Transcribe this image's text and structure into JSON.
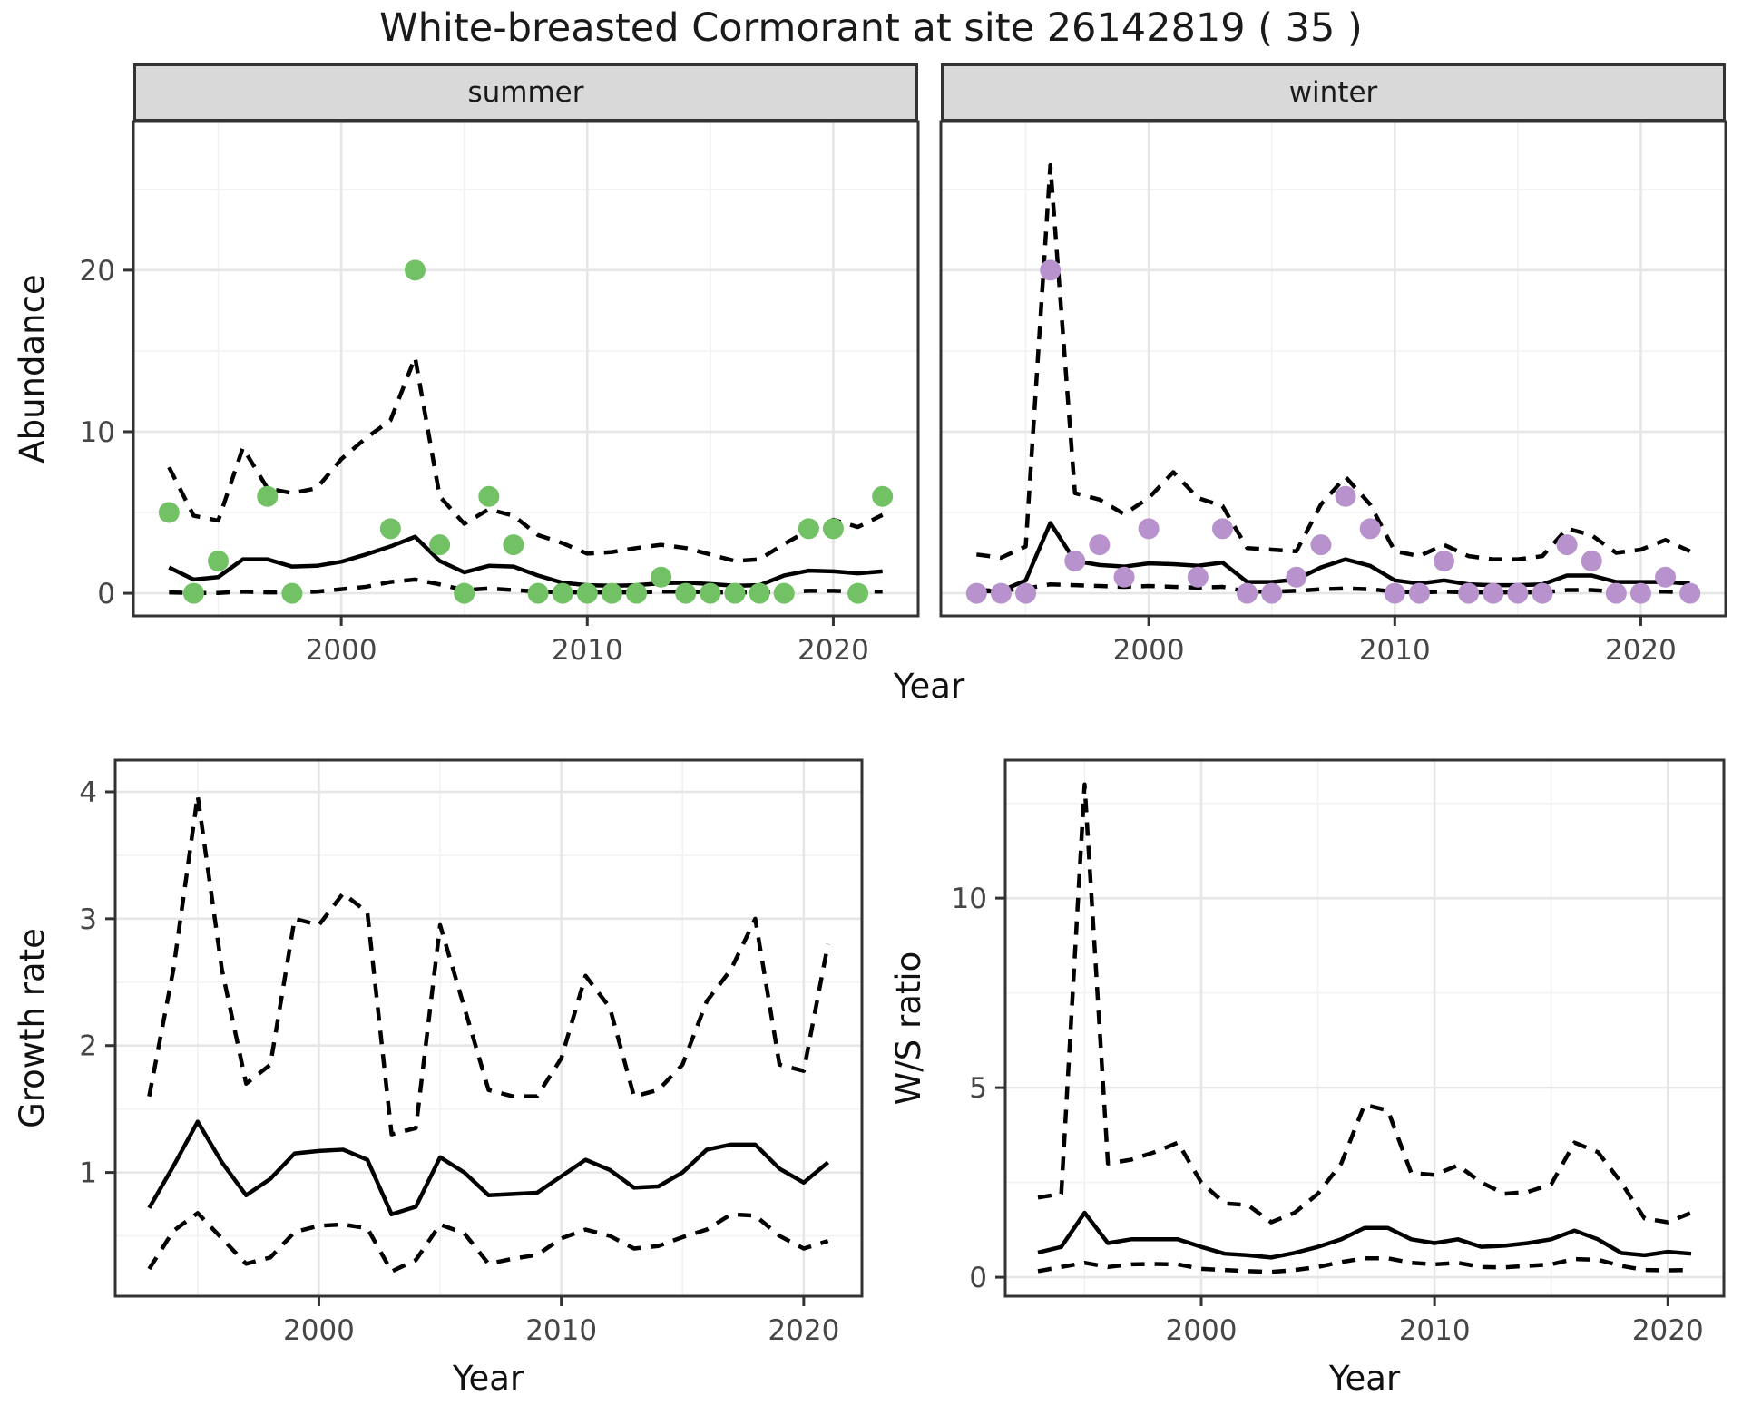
{
  "title": "White-breasted Cormorant at site 26142819 ( 35 )",
  "colors": {
    "summer_points": "#72c165",
    "winter_points": "#b792cc",
    "line": "#000000",
    "panel_border": "#333333",
    "strip_background": "#d9d9d9",
    "grid_major": "#e6e6e6",
    "grid_minor": "#f2f2f2",
    "tick_text": "#464646"
  },
  "chart_data": [
    {
      "id": "abundance-summer",
      "type": "line",
      "facet_label": "summer",
      "xlabel": "Year",
      "ylabel": "Abundance",
      "xlim": [
        1991.55,
        2023.45
      ],
      "ylim": [
        -1.4,
        29.2
      ],
      "x_major": [
        2000,
        2010,
        2020
      ],
      "x_minor": [
        1995,
        2005,
        2015
      ],
      "y_major": [
        0,
        10,
        20
      ],
      "y_minor": [
        5,
        15,
        25
      ],
      "x_tick_labels": [
        "2000",
        "2010",
        "2020"
      ],
      "y_tick_labels": [
        "0",
        "10",
        "20"
      ],
      "grid": true,
      "legend": "none",
      "series": [
        {
          "name": "upper-ci",
          "style": "dashed",
          "x": [
            1993,
            1994,
            1995,
            1996,
            1997,
            1998,
            1999,
            2000,
            2001,
            2002,
            2003,
            2004,
            2005,
            2006,
            2007,
            2008,
            2009,
            2010,
            2011,
            2012,
            2013,
            2014,
            2015,
            2016,
            2017,
            2018,
            2019,
            2020,
            2021,
            2022
          ],
          "y": [
            7.8,
            4.8,
            4.5,
            9.0,
            6.5,
            6.2,
            6.5,
            8.3,
            9.6,
            10.7,
            14.6,
            6.0,
            4.3,
            5.2,
            4.8,
            3.6,
            3.1,
            2.45,
            2.55,
            2.8,
            3.0,
            2.8,
            2.4,
            2.0,
            2.1,
            3.05,
            3.9,
            4.55,
            4.1,
            4.85
          ]
        },
        {
          "name": "lower-ci",
          "style": "dashed",
          "x": [
            1993,
            1994,
            1995,
            1996,
            1997,
            1998,
            1999,
            2000,
            2001,
            2002,
            2003,
            2004,
            2005,
            2006,
            2007,
            2008,
            2009,
            2010,
            2011,
            2012,
            2013,
            2014,
            2015,
            2016,
            2017,
            2018,
            2019,
            2020,
            2021,
            2022
          ],
          "y": [
            0.05,
            0.02,
            0.02,
            0.1,
            0.05,
            0.05,
            0.1,
            0.25,
            0.4,
            0.7,
            0.85,
            0.55,
            0.2,
            0.3,
            0.2,
            0.1,
            0.05,
            0.05,
            0.05,
            0.05,
            0.1,
            0.1,
            0.05,
            0.05,
            0.05,
            0.1,
            0.15,
            0.15,
            0.1,
            0.1
          ]
        },
        {
          "name": "fit",
          "style": "solid",
          "x": [
            1993,
            1994,
            1995,
            1996,
            1997,
            1998,
            1999,
            2000,
            2001,
            2002,
            2003,
            2004,
            2005,
            2006,
            2007,
            2008,
            2009,
            2010,
            2011,
            2012,
            2013,
            2014,
            2015,
            2016,
            2017,
            2018,
            2019,
            2020,
            2021,
            2022
          ],
          "y": [
            1.6,
            0.85,
            1.0,
            2.1,
            2.1,
            1.65,
            1.7,
            1.95,
            2.4,
            2.9,
            3.5,
            2.0,
            1.3,
            1.7,
            1.65,
            1.1,
            0.65,
            0.5,
            0.47,
            0.5,
            0.62,
            0.66,
            0.57,
            0.47,
            0.5,
            1.1,
            1.4,
            1.36,
            1.23,
            1.36
          ]
        },
        {
          "name": "observations",
          "style": "points",
          "color": "#72c165",
          "x": [
            1993,
            1994,
            1995,
            1997,
            1998,
            2002,
            2003,
            2004,
            2005,
            2006,
            2007,
            2008,
            2009,
            2010,
            2011,
            2012,
            2013,
            2014,
            2015,
            2016,
            2017,
            2018,
            2019,
            2020,
            2021,
            2022
          ],
          "y": [
            5,
            0,
            2,
            6,
            0,
            4,
            20,
            3,
            0,
            6,
            3,
            0,
            0,
            0,
            0,
            0,
            1,
            0,
            0,
            0,
            0,
            0,
            4,
            4,
            0,
            6
          ]
        }
      ]
    },
    {
      "id": "abundance-winter",
      "type": "line",
      "facet_label": "winter",
      "xlabel": "Year",
      "ylabel": "Abundance",
      "xlim": [
        1991.55,
        2023.45
      ],
      "ylim": [
        -1.4,
        29.2
      ],
      "x_major": [
        2000,
        2010,
        2020
      ],
      "x_minor": [
        1995,
        2005,
        2015
      ],
      "y_major": [
        0,
        10,
        20
      ],
      "y_minor": [
        5,
        15,
        25
      ],
      "x_tick_labels": [
        "2000",
        "2010",
        "2020"
      ],
      "y_tick_labels": null,
      "grid": true,
      "legend": "none",
      "series": [
        {
          "name": "upper-ci",
          "style": "dashed",
          "x": [
            1993,
            1994,
            1995,
            1996,
            1997,
            1998,
            1999,
            2000,
            2001,
            2002,
            2003,
            2004,
            2005,
            2006,
            2007,
            2008,
            2009,
            2010,
            2011,
            2012,
            2013,
            2014,
            2015,
            2016,
            2017,
            2018,
            2019,
            2020,
            2021,
            2022
          ],
          "y": [
            2.4,
            2.2,
            2.9,
            26.5,
            6.2,
            5.8,
            4.9,
            5.9,
            7.5,
            5.9,
            5.4,
            2.8,
            2.7,
            2.6,
            5.5,
            7.2,
            5.5,
            2.6,
            2.3,
            3.0,
            2.3,
            2.1,
            2.1,
            2.3,
            4.0,
            3.6,
            2.5,
            2.7,
            3.3,
            2.6
          ]
        },
        {
          "name": "lower-ci",
          "style": "dashed",
          "x": [
            1993,
            1994,
            1995,
            1996,
            1997,
            1998,
            1999,
            2000,
            2001,
            2002,
            2003,
            2004,
            2005,
            2006,
            2007,
            2008,
            2009,
            2010,
            2011,
            2012,
            2013,
            2014,
            2015,
            2016,
            2017,
            2018,
            2019,
            2020,
            2021,
            2022
          ],
          "y": [
            0.2,
            0.15,
            0.3,
            0.55,
            0.5,
            0.45,
            0.4,
            0.45,
            0.4,
            0.35,
            0.4,
            0.1,
            0.1,
            0.15,
            0.25,
            0.3,
            0.25,
            0.1,
            0.05,
            0.1,
            0.05,
            0.05,
            0.05,
            0.05,
            0.2,
            0.2,
            0.1,
            0.1,
            0.1,
            0.05
          ]
        },
        {
          "name": "fit",
          "style": "solid",
          "x": [
            1993,
            1994,
            1995,
            1996,
            1997,
            1998,
            1999,
            2000,
            2001,
            2002,
            2003,
            2004,
            2005,
            2006,
            2007,
            2008,
            2009,
            2010,
            2011,
            2012,
            2013,
            2014,
            2015,
            2016,
            2017,
            2018,
            2019,
            2020,
            2021,
            2022
          ],
          "y": [
            0.1,
            0.15,
            0.8,
            4.35,
            2.0,
            1.75,
            1.65,
            1.85,
            1.8,
            1.7,
            1.9,
            0.7,
            0.7,
            0.85,
            1.6,
            2.1,
            1.7,
            0.8,
            0.6,
            0.8,
            0.55,
            0.5,
            0.5,
            0.55,
            1.1,
            1.1,
            0.7,
            0.7,
            0.7,
            0.6
          ]
        },
        {
          "name": "observations",
          "style": "points",
          "color": "#b792cc",
          "x": [
            1993,
            1994,
            1995,
            1996,
            1997,
            1998,
            1999,
            2000,
            2002,
            2003,
            2004,
            2005,
            2006,
            2007,
            2008,
            2009,
            2010,
            2011,
            2012,
            2013,
            2014,
            2015,
            2016,
            2017,
            2018,
            2019,
            2020,
            2021,
            2022
          ],
          "y": [
            0,
            0,
            0,
            20,
            2,
            3,
            1,
            4,
            1,
            4,
            0,
            0,
            1,
            3,
            6,
            4,
            0,
            0,
            2,
            0,
            0,
            0,
            0,
            3,
            2,
            0,
            0,
            1,
            0
          ]
        }
      ]
    },
    {
      "id": "growth-rate",
      "type": "line",
      "facet_label": null,
      "xlabel": "Year",
      "ylabel": "Growth rate",
      "xlim": [
        1991.6,
        2022.4
      ],
      "ylim": [
        0.025,
        4.25
      ],
      "x_major": [
        2000,
        2010,
        2020
      ],
      "x_minor": [
        1995,
        2005,
        2015
      ],
      "y_major": [
        1,
        2,
        3,
        4
      ],
      "y_minor": [
        0.5,
        1.5,
        2.5,
        3.5
      ],
      "x_tick_labels": [
        "2000",
        "2010",
        "2020"
      ],
      "y_tick_labels": [
        "1",
        "2",
        "3",
        "4"
      ],
      "grid": true,
      "legend": "none",
      "series": [
        {
          "name": "upper-ci",
          "style": "dashed",
          "x": [
            1993,
            1994,
            1995,
            1996,
            1997,
            1998,
            1999,
            2000,
            2001,
            2002,
            2003,
            2004,
            2005,
            2006,
            2007,
            2008,
            2009,
            2010,
            2011,
            2012,
            2013,
            2014,
            2015,
            2016,
            2017,
            2018,
            2019,
            2020,
            2021
          ],
          "y": [
            1.6,
            2.6,
            3.97,
            2.6,
            1.7,
            1.85,
            3.0,
            2.95,
            3.2,
            3.05,
            1.3,
            1.35,
            2.95,
            2.3,
            1.65,
            1.6,
            1.6,
            1.9,
            2.55,
            2.3,
            1.6,
            1.65,
            1.85,
            2.35,
            2.6,
            3.0,
            1.85,
            1.8,
            2.8
          ]
        },
        {
          "name": "lower-ci",
          "style": "dashed",
          "x": [
            1993,
            1994,
            1995,
            1996,
            1997,
            1998,
            1999,
            2000,
            2001,
            2002,
            2003,
            2004,
            2005,
            2006,
            2007,
            2008,
            2009,
            2010,
            2011,
            2012,
            2013,
            2014,
            2015,
            2016,
            2017,
            2018,
            2019,
            2020,
            2021
          ],
          "y": [
            0.24,
            0.54,
            0.68,
            0.48,
            0.28,
            0.33,
            0.53,
            0.58,
            0.59,
            0.56,
            0.22,
            0.31,
            0.59,
            0.52,
            0.28,
            0.32,
            0.35,
            0.48,
            0.55,
            0.5,
            0.4,
            0.42,
            0.49,
            0.55,
            0.67,
            0.66,
            0.5,
            0.4,
            0.46
          ]
        },
        {
          "name": "fit",
          "style": "solid",
          "x": [
            1993,
            1994,
            1995,
            1996,
            1997,
            1998,
            1999,
            2000,
            2001,
            2002,
            2003,
            2004,
            2005,
            2006,
            2007,
            2008,
            2009,
            2010,
            2011,
            2012,
            2013,
            2014,
            2015,
            2016,
            2017,
            2018,
            2019,
            2020,
            2021
          ],
          "y": [
            0.72,
            1.05,
            1.4,
            1.08,
            0.82,
            0.95,
            1.15,
            1.17,
            1.18,
            1.1,
            0.67,
            0.73,
            1.12,
            1.0,
            0.82,
            0.83,
            0.84,
            0.97,
            1.1,
            1.02,
            0.88,
            0.89,
            1.0,
            1.18,
            1.22,
            1.22,
            1.03,
            0.92,
            1.08
          ]
        }
      ]
    },
    {
      "id": "ws-ratio",
      "type": "line",
      "facet_label": null,
      "xlabel": "Year",
      "ylabel": "W/S ratio",
      "xlim": [
        1991.6,
        2022.4
      ],
      "ylim": [
        -0.5,
        13.64
      ],
      "x_major": [
        2000,
        2010,
        2020
      ],
      "x_minor": [
        1995,
        2005,
        2015
      ],
      "y_major": [
        0,
        5,
        10
      ],
      "y_minor": [
        2.5,
        7.5,
        12.5
      ],
      "x_tick_labels": [
        "2000",
        "2010",
        "2020"
      ],
      "y_tick_labels": [
        "0",
        "5",
        "10"
      ],
      "grid": true,
      "legend": "none",
      "series": [
        {
          "name": "upper-ci",
          "style": "dashed",
          "x": [
            1993,
            1994,
            1995,
            1996,
            1997,
            1998,
            1999,
            2000,
            2001,
            2002,
            2003,
            2004,
            2005,
            2006,
            2007,
            2008,
            2009,
            2010,
            2011,
            2012,
            2013,
            2014,
            2015,
            2016,
            2017,
            2018,
            2019,
            2020,
            2021
          ],
          "y": [
            2.1,
            2.2,
            13.0,
            3.0,
            3.1,
            3.3,
            3.55,
            2.5,
            1.95,
            1.9,
            1.45,
            1.7,
            2.2,
            3.0,
            4.55,
            4.4,
            2.75,
            2.7,
            2.95,
            2.5,
            2.2,
            2.25,
            2.45,
            3.55,
            3.3,
            2.5,
            1.55,
            1.45,
            1.7
          ]
        },
        {
          "name": "lower-ci",
          "style": "dashed",
          "x": [
            1993,
            1994,
            1995,
            1996,
            1997,
            1998,
            1999,
            2000,
            2001,
            2002,
            2003,
            2004,
            2005,
            2006,
            2007,
            2008,
            2009,
            2010,
            2011,
            2012,
            2013,
            2014,
            2015,
            2016,
            2017,
            2018,
            2019,
            2020,
            2021
          ],
          "y": [
            0.16,
            0.27,
            0.38,
            0.27,
            0.34,
            0.35,
            0.34,
            0.22,
            0.19,
            0.16,
            0.14,
            0.19,
            0.27,
            0.4,
            0.5,
            0.5,
            0.38,
            0.34,
            0.38,
            0.27,
            0.26,
            0.3,
            0.34,
            0.48,
            0.46,
            0.3,
            0.19,
            0.18,
            0.19
          ]
        },
        {
          "name": "fit",
          "style": "solid",
          "x": [
            1993,
            1994,
            1995,
            1996,
            1997,
            1998,
            1999,
            2000,
            2001,
            2002,
            2003,
            2004,
            2005,
            2006,
            2007,
            2008,
            2009,
            2010,
            2011,
            2012,
            2013,
            2014,
            2015,
            2016,
            2017,
            2018,
            2019,
            2020,
            2021
          ],
          "y": [
            0.65,
            0.8,
            1.7,
            0.9,
            1.0,
            1.0,
            1.0,
            0.8,
            0.62,
            0.58,
            0.52,
            0.64,
            0.8,
            1.0,
            1.3,
            1.3,
            1.0,
            0.9,
            1.0,
            0.8,
            0.83,
            0.9,
            1.0,
            1.23,
            1.0,
            0.64,
            0.58,
            0.67,
            0.62
          ]
        }
      ]
    }
  ]
}
